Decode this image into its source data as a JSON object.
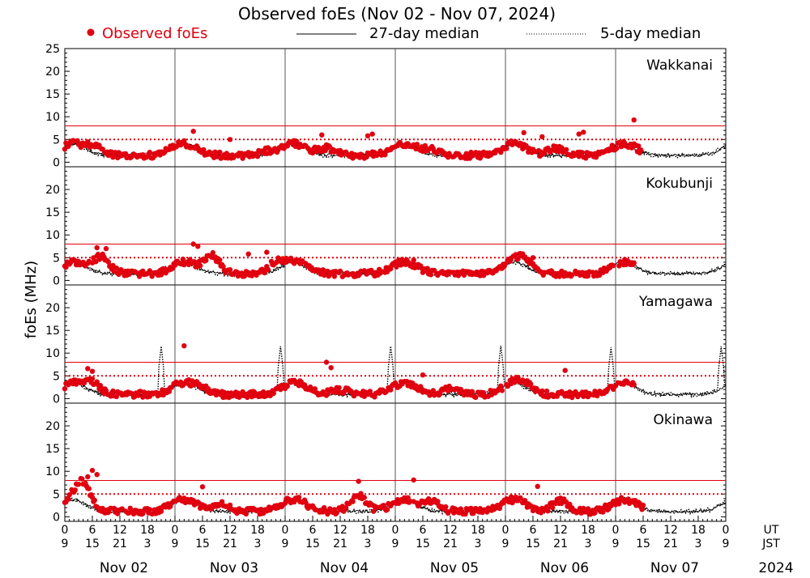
{
  "chart_data": {
    "type": "scatter",
    "title": "Observed foEs (Nov 02 - Nov 07, 2024)",
    "legend": [
      {
        "label": "Observed foEs",
        "style": "red-dots",
        "color": "#e0000f"
      },
      {
        "label": "27-day median",
        "style": "solid-line",
        "color": "#000000"
      },
      {
        "label": "5-day median",
        "style": "dotted-line",
        "color": "#000000"
      }
    ],
    "ylabel": "foEs (MHz)",
    "ylim": [
      -1,
      25
    ],
    "yticks_top": [
      0,
      5,
      10,
      15,
      20,
      25
    ],
    "yticks": [
      0,
      5,
      10,
      15,
      20
    ],
    "x_units": "hours UT from Nov 02 00:00",
    "xlim": [
      0,
      144
    ],
    "ut_label": "UT",
    "jst_label": "JST",
    "ut_ticks": [
      "0",
      "6",
      "12",
      "18",
      "0",
      "6",
      "12",
      "18",
      "0",
      "6",
      "12",
      "18",
      "0",
      "6",
      "12",
      "18",
      "0",
      "6",
      "12",
      "18",
      "0",
      "6",
      "12",
      "18",
      "0"
    ],
    "jst_ticks": [
      "9",
      "15",
      "21",
      "3",
      "9",
      "15",
      "21",
      "3",
      "9",
      "15",
      "21",
      "3",
      "9",
      "15",
      "21",
      "3",
      "9",
      "15",
      "21",
      "3",
      "9",
      "15",
      "21",
      "3",
      "9"
    ],
    "days": [
      "Nov 02",
      "Nov 03",
      "Nov 04",
      "Nov 05",
      "Nov 06",
      "Nov 07"
    ],
    "year": "2024",
    "reference_lines": [
      {
        "value": 8,
        "style": "solid",
        "color": "#e0000f"
      },
      {
        "value": 5,
        "style": "dotted",
        "color": "#e0000f"
      }
    ],
    "stations": [
      {
        "name": "Wakkanai",
        "seed": 11,
        "obs_end": 126,
        "median_profile": "mid",
        "obs_peaks": [
          [
            7,
            4.8
          ],
          [
            44,
            3.8
          ],
          [
            57,
            4.6
          ],
          [
            80,
            4.3
          ],
          [
            107,
            4.6
          ]
        ],
        "obs_highlights": [
          [
            28,
            6.8
          ],
          [
            36,
            5.0
          ],
          [
            56,
            6.0
          ],
          [
            66,
            5.8
          ],
          [
            67,
            6.2
          ],
          [
            100,
            6.5
          ],
          [
            104,
            5.6
          ],
          [
            112,
            6.2
          ],
          [
            113,
            6.6
          ],
          [
            124,
            9.3
          ]
        ],
        "spikes": []
      },
      {
        "name": "Kokubunji",
        "seed": 23,
        "obs_end": 124,
        "median_profile": "mid",
        "obs_peaks": [
          [
            8,
            6.6
          ],
          [
            32,
            6.8
          ],
          [
            46,
            5.0
          ],
          [
            100,
            4.6
          ]
        ],
        "obs_highlights": [
          [
            7,
            7.2
          ],
          [
            9,
            7.0
          ],
          [
            28,
            8.0
          ],
          [
            29,
            7.5
          ],
          [
            40,
            5.8
          ],
          [
            44,
            6.2
          ],
          [
            76,
            4.5
          ],
          [
            102,
            5.0
          ]
        ],
        "spikes": []
      },
      {
        "name": "Yamagawa",
        "seed": 37,
        "obs_end": 124,
        "median_profile": "low",
        "obs_peaks": [
          [
            6,
            5.0
          ],
          [
            30,
            4.0
          ],
          [
            60,
            4.0
          ],
          [
            84,
            4.4
          ],
          [
            100,
            4.2
          ]
        ],
        "obs_highlights": [
          [
            5,
            6.6
          ],
          [
            6,
            6.0
          ],
          [
            26,
            11.6
          ],
          [
            57,
            8.0
          ],
          [
            58,
            6.8
          ],
          [
            78,
            5.2
          ],
          [
            109,
            6.2
          ]
        ],
        "spikes": [
          [
            21,
            11.5
          ],
          [
            47,
            11.5
          ],
          [
            71,
            11.5
          ],
          [
            95,
            11.6
          ],
          [
            119,
            11.3
          ],
          [
            143,
            11.5
          ]
        ]
      },
      {
        "name": "Okinawa",
        "seed": 53,
        "obs_end": 126,
        "median_profile": "south",
        "obs_peaks": [
          [
            4,
            7.5
          ],
          [
            34,
            4.6
          ],
          [
            64,
            6.5
          ],
          [
            80,
            5.0
          ],
          [
            108,
            5.4
          ]
        ],
        "obs_highlights": [
          [
            5,
            8.8
          ],
          [
            6,
            10.2
          ],
          [
            7,
            9.3
          ],
          [
            30,
            6.6
          ],
          [
            64,
            7.8
          ],
          [
            76,
            8.1
          ],
          [
            103,
            6.7
          ]
        ],
        "spikes": []
      }
    ]
  }
}
